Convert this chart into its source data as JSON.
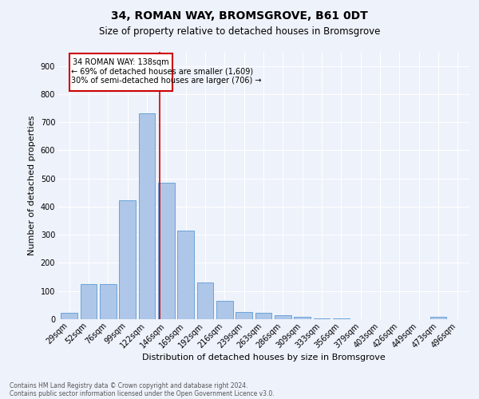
{
  "title": "34, ROMAN WAY, BROMSGROVE, B61 0DT",
  "subtitle": "Size of property relative to detached houses in Bromsgrove",
  "xlabel": "Distribution of detached houses by size in Bromsgrove",
  "ylabel": "Number of detached properties",
  "footnote1": "Contains HM Land Registry data © Crown copyright and database right 2024.",
  "footnote2": "Contains public sector information licensed under the Open Government Licence v3.0.",
  "annotation_line1": "34 ROMAN WAY: 138sqm",
  "annotation_line2": "← 69% of detached houses are smaller (1,609)",
  "annotation_line3": "30% of semi-detached houses are larger (706) →",
  "bar_color": "#aec6e8",
  "bar_edge_color": "#5b9bd5",
  "vline_color": "#cc0000",
  "background_color": "#eef2fb",
  "annotation_box_color": "#cc0000",
  "categories": [
    "29sqm",
    "52sqm",
    "76sqm",
    "99sqm",
    "122sqm",
    "146sqm",
    "169sqm",
    "192sqm",
    "216sqm",
    "239sqm",
    "263sqm",
    "286sqm",
    "309sqm",
    "333sqm",
    "356sqm",
    "379sqm",
    "403sqm",
    "426sqm",
    "449sqm",
    "473sqm",
    "496sqm"
  ],
  "values": [
    22,
    125,
    125,
    422,
    732,
    485,
    315,
    130,
    65,
    26,
    22,
    14,
    8,
    3,
    2,
    1,
    1,
    0,
    0,
    8,
    0
  ],
  "ylim": [
    0,
    950
  ],
  "yticks": [
    0,
    100,
    200,
    300,
    400,
    500,
    600,
    700,
    800,
    900
  ],
  "vline_x_index": 4.65,
  "title_fontsize": 10,
  "subtitle_fontsize": 8.5,
  "ylabel_fontsize": 8,
  "xlabel_fontsize": 8,
  "tick_fontsize": 7,
  "annot_fontsize": 7,
  "footnote_fontsize": 5.5
}
